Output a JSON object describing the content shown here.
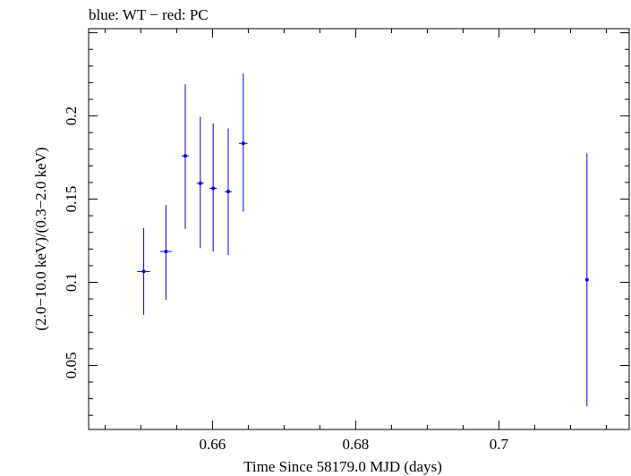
{
  "chart_data": {
    "type": "scatter",
    "title": "blue: WT − red: PC",
    "xlabel": "Time Since 58179.0 MJD (days)",
    "ylabel": "(2.0−10.0 keV)/(0.3−2.0 keV)",
    "xlim": [
      0.6427,
      0.7182
    ],
    "ylim": [
      0.0115,
      0.2525
    ],
    "x_ticks": [
      {
        "value": 0.66,
        "label": "0.66"
      },
      {
        "value": 0.68,
        "label": "0.68"
      },
      {
        "value": 0.7,
        "label": "0.7"
      }
    ],
    "y_ticks": [
      {
        "value": 0.05,
        "label": "0.05"
      },
      {
        "value": 0.1,
        "label": "0.1"
      },
      {
        "value": 0.15,
        "label": "0.15"
      },
      {
        "value": 0.2,
        "label": "0.2"
      }
    ],
    "series": [
      {
        "color": "#0000e0",
        "points": [
          {
            "x": 0.6504,
            "y": 0.1065,
            "x_err": [
              0.0009,
              0.0009
            ],
            "y_err": [
              0.026,
              0.026
            ]
          },
          {
            "x": 0.6535,
            "y": 0.1185,
            "x_err": [
              0.0008,
              0.0008
            ],
            "y_err": [
              0.029,
              0.028
            ]
          },
          {
            "x": 0.6562,
            "y": 0.176,
            "x_err": [
              0.0005,
              0.0005
            ],
            "y_err": [
              0.044,
              0.043
            ]
          },
          {
            "x": 0.6583,
            "y": 0.1595,
            "x_err": [
              0.0005,
              0.0005
            ],
            "y_err": [
              0.039,
              0.04
            ]
          },
          {
            "x": 0.6601,
            "y": 0.1565,
            "x_err": [
              0.0005,
              0.0005
            ],
            "y_err": [
              0.038,
              0.039
            ]
          },
          {
            "x": 0.6622,
            "y": 0.1545,
            "x_err": [
              0.0005,
              0.0005
            ],
            "y_err": [
              0.038,
              0.038
            ]
          },
          {
            "x": 0.6643,
            "y": 0.1835,
            "x_err": [
              0.0006,
              0.0006
            ],
            "y_err": [
              0.041,
              0.042
            ]
          },
          {
            "x": 0.7123,
            "y": 0.1015,
            "x_err": [
              0.0,
              0.0
            ],
            "y_err": [
              0.076,
              0.076
            ]
          }
        ]
      }
    ],
    "grid": false,
    "legend": "none"
  }
}
